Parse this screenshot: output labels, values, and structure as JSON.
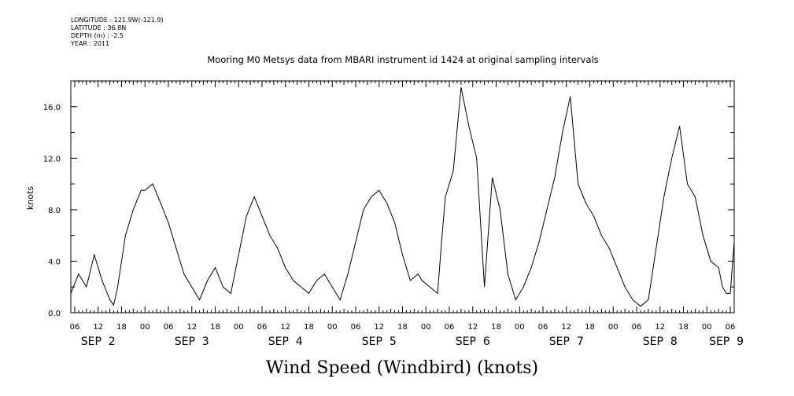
{
  "header": {
    "longitude": "LONGITUDE : 121.9W(-121.9)",
    "latitude": "LATITUDE : 36.8N",
    "depth": "DEPTH (m) : -2.5",
    "year": "YEAR : 2011"
  },
  "chart_data": {
    "type": "line",
    "title": "Mooring M0 Metsys data from MBARI instrument id 1424 at original sampling intervals",
    "caption": "Wind Speed (Windbird) (knots)",
    "ylabel": "knots",
    "xlabel": "",
    "ylim": [
      0,
      18
    ],
    "yticks": [
      0,
      4,
      8,
      12,
      16
    ],
    "ytick_labels": [
      "0.0",
      "4.0",
      "8.0",
      "12.0",
      "16.0"
    ],
    "xlim": [
      "2011-09-02T05:00",
      "2011-09-09T07:00"
    ],
    "hour_tick_labels": [
      "06",
      "12",
      "18",
      "00",
      "06",
      "12",
      "18",
      "00",
      "06",
      "12",
      "18",
      "00",
      "06",
      "12",
      "18",
      "00",
      "06",
      "12",
      "18",
      "00",
      "06",
      "12",
      "18",
      "00",
      "06",
      "12",
      "18",
      "00",
      "06"
    ],
    "date_labels": [
      "SEP  2",
      "SEP  3",
      "SEP  4",
      "SEP  5",
      "SEP  6",
      "SEP  7",
      "SEP  8",
      "SEP  9"
    ],
    "grid": false,
    "legend": "none",
    "line_color": "#000000",
    "series": [
      {
        "x": [
          "2011-09-02T05:00",
          "2011-09-02T07:00",
          "2011-09-02T09:00",
          "2011-09-02T11:00",
          "2011-09-02T13:00",
          "2011-09-02T15:00",
          "2011-09-02T16:00",
          "2011-09-02T17:00",
          "2011-09-02T19:00",
          "2011-09-02T21:00",
          "2011-09-02T23:00",
          "2011-09-03T00:00",
          "2011-09-03T02:00",
          "2011-09-03T04:00",
          "2011-09-03T06:00",
          "2011-09-03T08:00",
          "2011-09-03T10:00",
          "2011-09-03T12:00",
          "2011-09-03T14:00",
          "2011-09-03T16:00",
          "2011-09-03T18:00",
          "2011-09-03T20:00",
          "2011-09-03T22:00",
          "2011-09-04T00:00",
          "2011-09-04T02:00",
          "2011-09-04T04:00",
          "2011-09-04T06:00",
          "2011-09-04T08:00",
          "2011-09-04T10:00",
          "2011-09-04T12:00",
          "2011-09-04T14:00",
          "2011-09-04T16:00",
          "2011-09-04T18:00",
          "2011-09-04T20:00",
          "2011-09-04T22:00",
          "2011-09-05T00:00",
          "2011-09-05T02:00",
          "2011-09-05T04:00",
          "2011-09-05T06:00",
          "2011-09-05T08:00",
          "2011-09-05T10:00",
          "2011-09-05T12:00",
          "2011-09-05T14:00",
          "2011-09-05T16:00",
          "2011-09-05T18:00",
          "2011-09-05T20:00",
          "2011-09-05T22:00",
          "2011-09-05T23:00",
          "2011-09-06T01:00",
          "2011-09-06T03:00",
          "2011-09-06T04:00",
          "2011-09-06T05:00",
          "2011-09-06T07:00",
          "2011-09-06T09:00",
          "2011-09-06T11:00",
          "2011-09-06T13:00",
          "2011-09-06T15:00",
          "2011-09-06T17:00",
          "2011-09-06T19:00",
          "2011-09-06T21:00",
          "2011-09-06T23:00",
          "2011-09-07T01:00",
          "2011-09-07T03:00",
          "2011-09-07T05:00",
          "2011-09-07T07:00",
          "2011-09-07T09:00",
          "2011-09-07T11:00",
          "2011-09-07T13:00",
          "2011-09-07T15:00",
          "2011-09-07T17:00",
          "2011-09-07T19:00",
          "2011-09-07T21:00",
          "2011-09-07T23:00",
          "2011-09-08T01:00",
          "2011-09-08T03:00",
          "2011-09-08T05:00",
          "2011-09-08T07:00",
          "2011-09-08T09:00",
          "2011-09-08T11:00",
          "2011-09-08T13:00",
          "2011-09-08T15:00",
          "2011-09-08T17:00",
          "2011-09-08T19:00",
          "2011-09-08T21:00",
          "2011-09-08T23:00",
          "2011-09-09T01:00",
          "2011-09-09T03:00",
          "2011-09-09T04:00",
          "2011-09-09T05:00",
          "2011-09-09T06:00",
          "2011-09-09T07:00"
        ],
        "values": [
          1.5,
          3.0,
          2.0,
          4.5,
          2.5,
          1.0,
          0.6,
          2.0,
          6.0,
          8.0,
          9.5,
          9.5,
          10.0,
          8.5,
          7.0,
          5.0,
          3.0,
          2.0,
          1.0,
          2.5,
          3.5,
          2.0,
          1.5,
          4.5,
          7.5,
          9.0,
          7.5,
          6.0,
          5.0,
          3.5,
          2.5,
          2.0,
          1.5,
          2.5,
          3.0,
          2.0,
          1.0,
          3.0,
          5.5,
          8.0,
          9.0,
          9.5,
          8.5,
          7.0,
          4.5,
          2.5,
          3.0,
          2.5,
          2.0,
          1.5,
          5.5,
          9.0,
          11.0,
          17.5,
          14.5,
          12.0,
          2.0,
          10.5,
          8.0,
          3.0,
          1.0,
          2.0,
          3.5,
          5.5,
          8.0,
          10.5,
          14.0,
          16.8,
          10.0,
          8.5,
          7.5,
          6.0,
          5.0,
          3.5,
          2.0,
          1.0,
          0.5,
          1.0,
          5.0,
          9.0,
          12.0,
          14.5,
          10.0,
          9.0,
          6.0,
          4.0,
          3.5,
          2.0,
          1.5,
          1.5,
          5.5
        ]
      }
    ]
  }
}
